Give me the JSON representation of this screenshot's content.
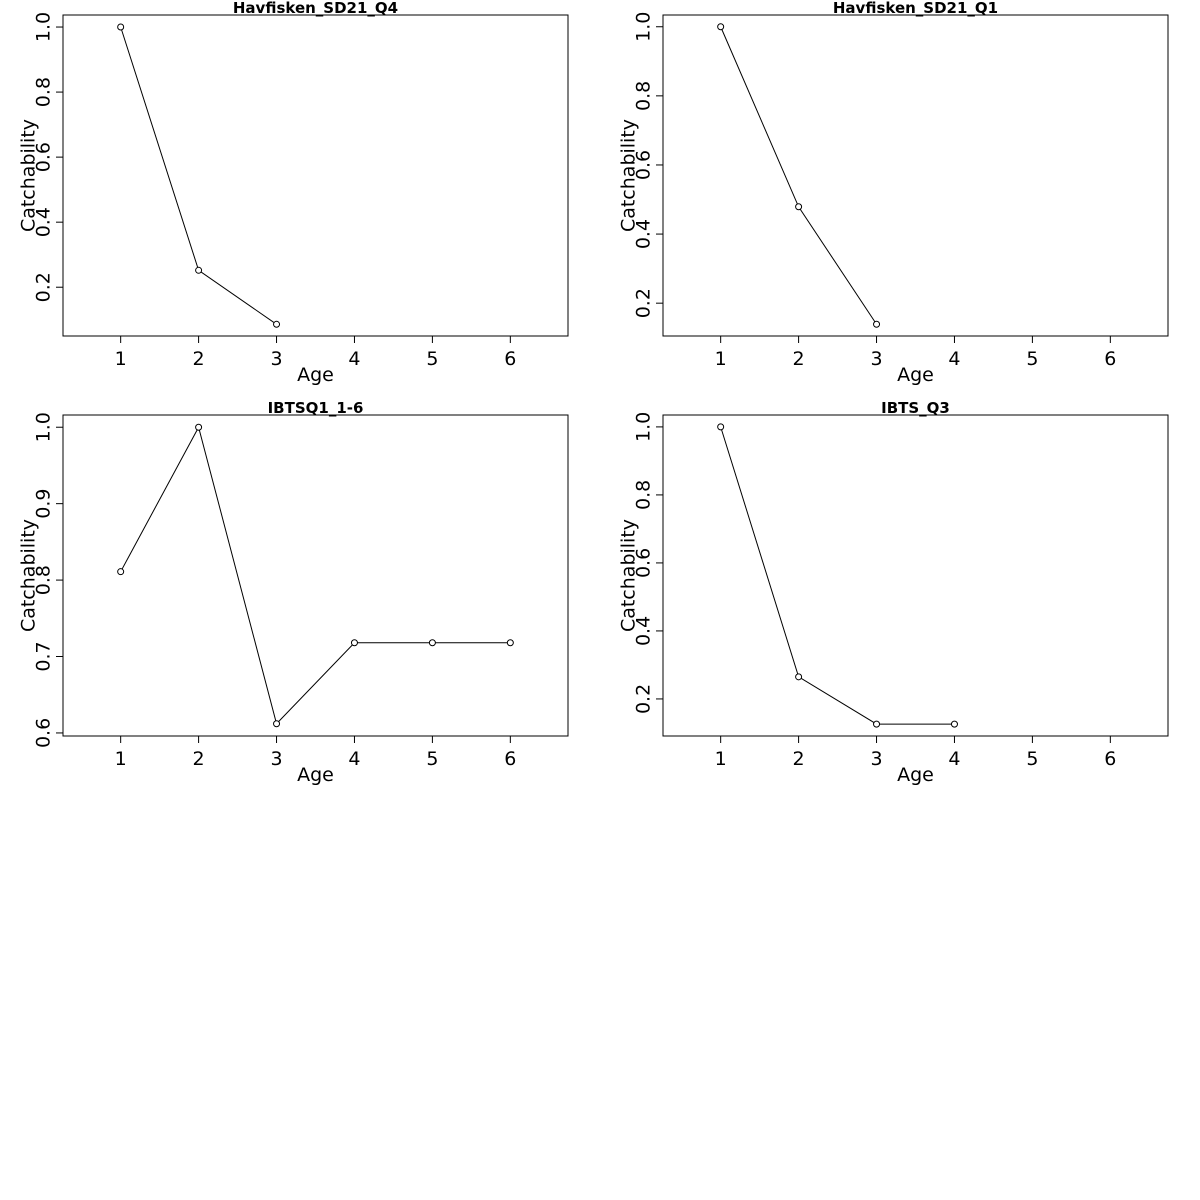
{
  "chart_data": [
    {
      "type": "line",
      "title": "Havfisken_SD21_Q4",
      "x": [
        1,
        2,
        3
      ],
      "values": [
        1.0,
        0.252,
        0.086
      ],
      "xlabel": "Age",
      "ylabel": "Catchability",
      "xlim": [
        0.26,
        6.74
      ],
      "ylim": [
        0.05,
        1.037
      ],
      "xticks": [
        1,
        2,
        3,
        4,
        5,
        6
      ],
      "yticks": [
        0.2,
        0.4,
        0.6,
        0.8,
        {
          "value": 1,
          "label": "1.0"
        }
      ],
      "color": "#000000"
    },
    {
      "type": "line",
      "title": "Havfisken_SD21_Q1",
      "x": [
        1,
        2,
        3
      ],
      "values": [
        1.0,
        0.479,
        0.139
      ],
      "xlabel": "Age",
      "ylabel": "Catchability",
      "xlim": [
        0.26,
        6.74
      ],
      "ylim": [
        0.105,
        1.034
      ],
      "xticks": [
        1,
        2,
        3,
        4,
        5,
        6
      ],
      "yticks": [
        0.2,
        0.4,
        0.6,
        0.8,
        {
          "value": 1,
          "label": "1.0"
        }
      ],
      "color": "#000000"
    },
    {
      "type": "line",
      "title": "IBTSQ1_1-6",
      "x": [
        1,
        2,
        3,
        4,
        5,
        6
      ],
      "values": [
        0.811,
        1.0,
        0.612,
        0.718,
        0.718,
        0.718
      ],
      "xlabel": "Age",
      "ylabel": "Catchability",
      "xlim": [
        0.26,
        6.74
      ],
      "ylim": [
        0.596,
        1.016
      ],
      "xticks": [
        1,
        2,
        3,
        4,
        5,
        6
      ],
      "yticks": [
        0.6,
        0.7,
        0.8,
        0.9,
        {
          "value": 1,
          "label": "1.0"
        }
      ],
      "color": "#000000"
    },
    {
      "type": "line",
      "title": "IBTS_Q3",
      "x": [
        1,
        2,
        3,
        4
      ],
      "values": [
        1.0,
        0.265,
        0.126,
        0.126
      ],
      "xlabel": "Age",
      "ylabel": "Catchability",
      "xlim": [
        0.26,
        6.74
      ],
      "ylim": [
        0.091,
        1.035
      ],
      "xticks": [
        1,
        2,
        3,
        4,
        5,
        6
      ],
      "yticks": [
        0.2,
        0.4,
        0.6,
        0.8,
        {
          "value": 1,
          "label": "1.0"
        }
      ],
      "color": "#000000"
    }
  ]
}
